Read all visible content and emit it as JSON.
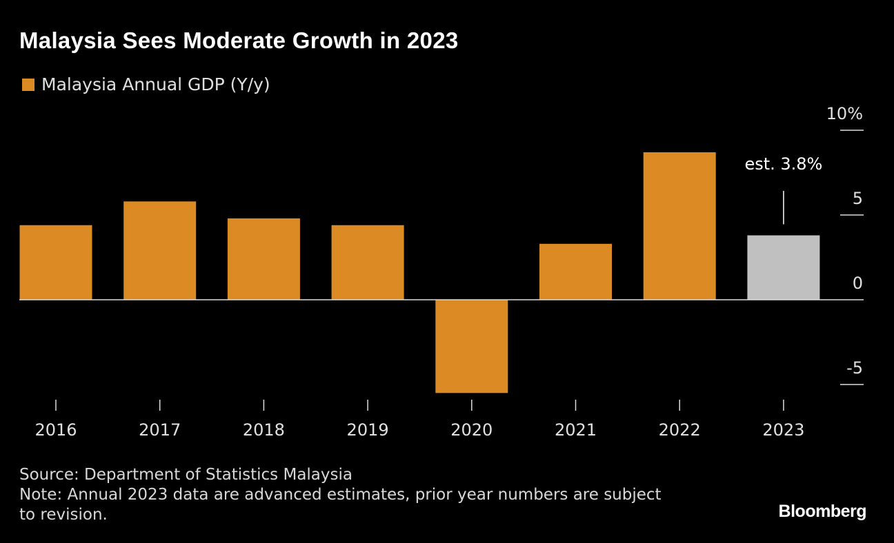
{
  "chart_data": {
    "type": "bar",
    "title": "Malaysia Sees Moderate Growth in 2023",
    "legend": [
      {
        "name": "Malaysia Annual GDP (Y/y)",
        "color": "#db8a24"
      }
    ],
    "legend_placement": "top-left",
    "categories": [
      "2016",
      "2017",
      "2018",
      "2019",
      "2020",
      "2021",
      "2022",
      "2023"
    ],
    "series": [
      {
        "name": "Malaysia Annual GDP (Y/y)",
        "values": [
          4.4,
          5.8,
          4.8,
          4.4,
          -5.5,
          3.3,
          8.7,
          3.8
        ]
      }
    ],
    "bar_colors": [
      "#db8a24",
      "#db8a24",
      "#db8a24",
      "#db8a24",
      "#db8a24",
      "#db8a24",
      "#db8a24",
      "#c0c0c0"
    ],
    "y_ticks": [
      {
        "value": 10,
        "label": "10%"
      },
      {
        "value": 5,
        "label": "5"
      },
      {
        "value": 0,
        "label": "0"
      },
      {
        "value": -5,
        "label": "-5"
      }
    ],
    "ylim": [
      -6,
      11
    ],
    "y_axis_side": "right",
    "grid": false,
    "annotation": {
      "category": "2023",
      "text": "est. 3.8%"
    }
  },
  "footer": {
    "source": "Source: Department of Statistics Malaysia",
    "note_line1": "Note: Annual 2023 data are advanced estimates, prior year numbers are subject",
    "note_line2": "to revision."
  },
  "brand": "Bloomberg"
}
